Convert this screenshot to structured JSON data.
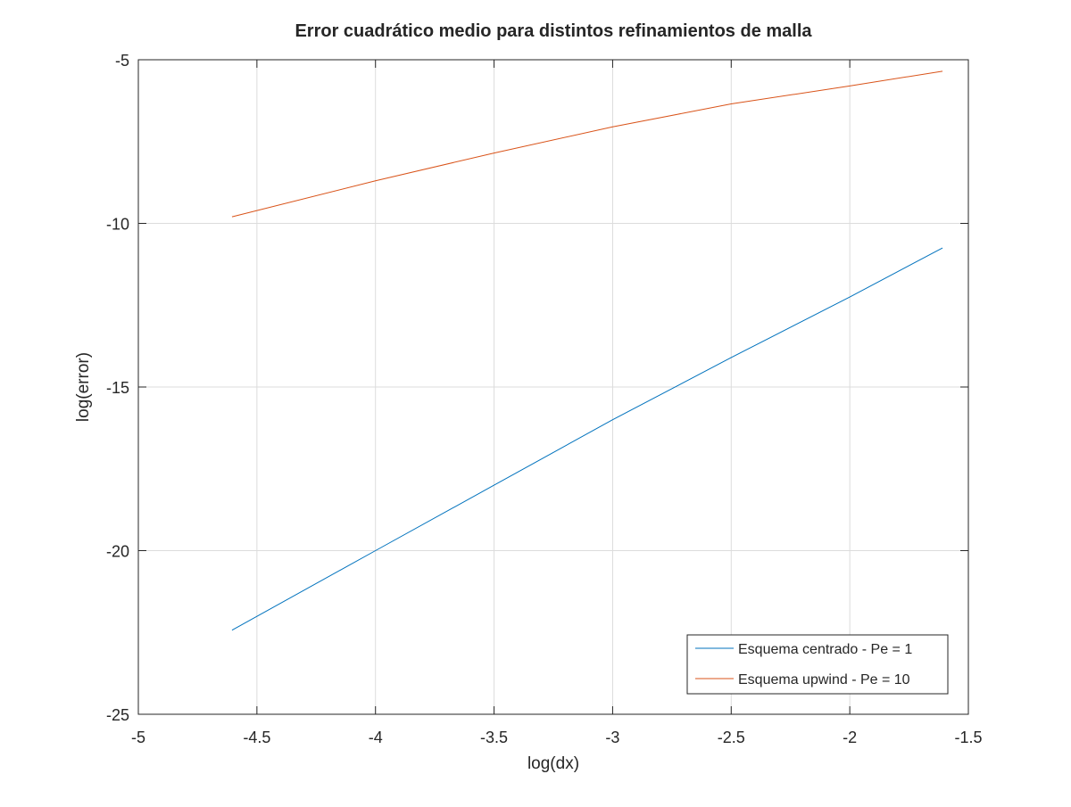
{
  "chart_data": {
    "type": "line",
    "title": "Error cuadrático medio para distintos refinamientos de malla",
    "xlabel": "log(dx)",
    "ylabel": "log(error)",
    "xlim": [
      -5,
      -1.5
    ],
    "ylim": [
      -25,
      -5
    ],
    "xticks": [
      -5,
      -4.5,
      -4,
      -3.5,
      -3,
      -2.5,
      -2,
      -1.5
    ],
    "yticks": [
      -5,
      -10,
      -15,
      -20,
      -25
    ],
    "xtick_labels": [
      "-5",
      "-4.5",
      "-4",
      "-3.5",
      "-3",
      "-2.5",
      "-2",
      "-1.5"
    ],
    "ytick_labels": [
      "-5",
      "-10",
      "-15",
      "-20",
      "-25"
    ],
    "grid": true,
    "legend_position": "bottom-right",
    "series": [
      {
        "name": "Esquema centrado - Pe = 1",
        "color": "#0072BD",
        "x": [
          -4.605,
          -4.0,
          -3.5,
          -3.0,
          -2.5,
          -2.0,
          -1.609
        ],
        "y": [
          -22.43,
          -20.0,
          -18.0,
          -16.0,
          -14.1,
          -12.25,
          -10.75
        ]
      },
      {
        "name": "Esquema upwind - Pe = 10",
        "color": "#D95319",
        "x": [
          -4.605,
          -4.0,
          -3.5,
          -3.0,
          -2.5,
          -2.0,
          -1.609
        ],
        "y": [
          -9.8,
          -8.7,
          -7.85,
          -7.05,
          -6.35,
          -5.8,
          -5.35
        ]
      }
    ]
  }
}
